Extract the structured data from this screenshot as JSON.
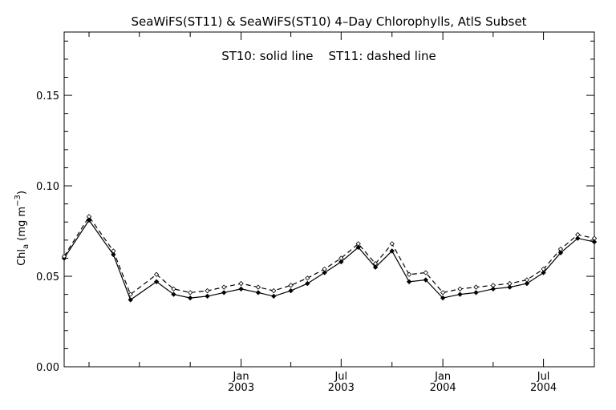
{
  "chart_data": {
    "type": "line",
    "title": "SeaWiFS(ST11) & SeaWiFS(ST10) 4–Day Chlorophylls, AtlS Subset",
    "annotation": "ST10: solid line    ST11: dashed line",
    "ylabel_main": "Chl",
    "ylabel_sub": "a",
    "ylabel_unit": " (mg m",
    "ylabel_sup": "−3",
    "ylabel_close": ")",
    "ylim": [
      0.0,
      0.185
    ],
    "yticks": [
      {
        "v": 0.0,
        "label": "0.00"
      },
      {
        "v": 0.05,
        "label": "0.05"
      },
      {
        "v": 0.1,
        "label": "0.10"
      },
      {
        "v": 0.15,
        "label": "0.15"
      }
    ],
    "xlim": [
      "2002-02-15",
      "2004-10-01"
    ],
    "xticks": [
      {
        "date": "2003-01-01",
        "line1": "Jan",
        "line2": "2003"
      },
      {
        "date": "2003-07-01",
        "line1": "Jul",
        "line2": "2003"
      },
      {
        "date": "2004-01-01",
        "line1": "Jan",
        "line2": "2004"
      },
      {
        "date": "2004-07-01",
        "line1": "Jul",
        "line2": "2004"
      }
    ],
    "xminor": [
      "2002-04-01",
      "2002-07-01",
      "2002-10-01",
      "2003-04-01",
      "2003-10-01",
      "2004-04-01",
      "2004-10-01"
    ],
    "x": [
      "2002-02-15",
      "2002-04-01",
      "2002-05-15",
      "2002-06-15",
      "2002-08-01",
      "2002-09-01",
      "2002-10-01",
      "2002-11-01",
      "2002-12-01",
      "2003-01-01",
      "2003-02-01",
      "2003-03-01",
      "2003-04-01",
      "2003-05-01",
      "2003-06-01",
      "2003-07-01",
      "2003-08-01",
      "2003-09-01",
      "2003-10-01",
      "2003-11-01",
      "2003-12-01",
      "2004-01-01",
      "2004-02-01",
      "2004-03-01",
      "2004-04-01",
      "2004-05-01",
      "2004-06-01",
      "2004-07-01",
      "2004-08-01",
      "2004-09-01",
      "2004-10-01"
    ],
    "series": [
      {
        "name": "ST10",
        "style": "solid",
        "values": [
          0.06,
          0.081,
          0.062,
          0.037,
          0.047,
          0.04,
          0.038,
          0.039,
          0.041,
          0.043,
          0.041,
          0.039,
          0.042,
          0.046,
          0.052,
          0.058,
          0.066,
          0.055,
          0.064,
          0.047,
          0.048,
          0.038,
          0.04,
          0.041,
          0.043,
          0.044,
          0.046,
          0.052,
          0.063,
          0.071,
          0.069
        ]
      },
      {
        "name": "ST11",
        "style": "dashed",
        "values": [
          0.061,
          0.083,
          0.064,
          0.04,
          0.051,
          0.043,
          0.041,
          0.042,
          0.044,
          0.046,
          0.044,
          0.042,
          0.045,
          0.049,
          0.054,
          0.06,
          0.068,
          0.057,
          0.068,
          0.051,
          0.052,
          0.041,
          0.043,
          0.044,
          0.045,
          0.046,
          0.048,
          0.054,
          0.065,
          0.073,
          0.071
        ]
      }
    ],
    "grid": false,
    "legend": "text annotation at top"
  }
}
